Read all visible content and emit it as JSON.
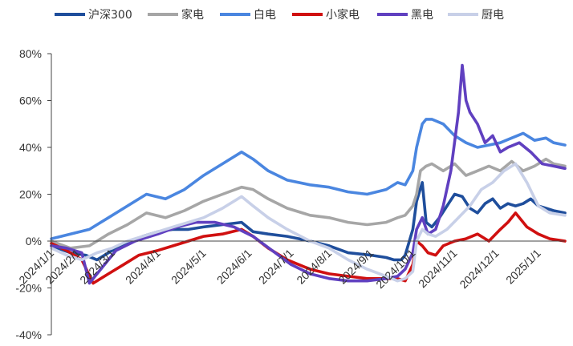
{
  "chart_data": {
    "type": "line",
    "title": "",
    "xlabel": "",
    "ylabel": "",
    "ylim": [
      -40,
      80
    ],
    "yticks": [
      -40,
      -20,
      0,
      20,
      40,
      60,
      80
    ],
    "ytick_labels": [
      "-40%",
      "-20%",
      "0%",
      "20%",
      "40%",
      "60%",
      "80%"
    ],
    "x_tick_labels": [
      "2024/1/1",
      "2024/2/1",
      "2024/3/1",
      "2024/4/1",
      "2024/5/1",
      "2024/6/1",
      "2024/7/1",
      "2024/8/1",
      "2024/9/1",
      "2024/10/1",
      "2024/11/1",
      "2024/12/1",
      "2025/1/1"
    ],
    "x_tick_positions": [
      0.0,
      0.7,
      1.6,
      2.8,
      4.0,
      5.2,
      6.3,
      7.3,
      8.4,
      9.5,
      10.6,
      11.7,
      12.8
    ],
    "xlim": [
      0,
      13.5
    ],
    "legend_position": "top",
    "series": [
      {
        "name": "沪深300",
        "color": "#1f4e9c",
        "x": [
          0,
          0.5,
          0.9,
          1.2,
          1.6,
          2.0,
          2.4,
          2.8,
          3.2,
          3.6,
          4.0,
          4.5,
          5.0,
          5.3,
          5.7,
          6.2,
          6.8,
          7.3,
          7.8,
          8.4,
          8.8,
          9.0,
          9.2,
          9.3,
          9.5,
          9.6,
          9.75,
          9.85,
          10.0,
          10.2,
          10.4,
          10.6,
          10.8,
          11.0,
          11.2,
          11.4,
          11.6,
          11.8,
          12.0,
          12.2,
          12.4,
          12.6,
          12.8,
          13.0,
          13.2,
          13.5
        ],
        "values": [
          -2,
          -5,
          -6,
          -8,
          -4,
          -1,
          2,
          4,
          5,
          5,
          6,
          7,
          8,
          4,
          3,
          2,
          0,
          -2,
          -5,
          -6,
          -7,
          -8,
          -8,
          -6,
          5,
          17,
          25,
          8,
          6,
          10,
          15,
          20,
          19,
          14,
          12,
          16,
          18,
          14,
          16,
          15,
          16,
          18,
          15,
          14,
          13,
          12
        ]
      },
      {
        "name": "家电",
        "color": "#a6a6a6",
        "x": [
          0,
          0.5,
          1.0,
          1.5,
          2.0,
          2.5,
          3.0,
          3.5,
          4.0,
          4.5,
          5.0,
          5.3,
          5.7,
          6.2,
          6.8,
          7.3,
          7.8,
          8.3,
          8.8,
          9.1,
          9.3,
          9.5,
          9.6,
          9.7,
          9.85,
          10.0,
          10.3,
          10.6,
          10.9,
          11.2,
          11.5,
          11.8,
          12.1,
          12.4,
          12.7,
          13.0,
          13.2,
          13.5
        ],
        "values": [
          0,
          -3,
          -2,
          3,
          7,
          12,
          10,
          13,
          17,
          20,
          23,
          22,
          18,
          14,
          11,
          10,
          8,
          7,
          8,
          10,
          11,
          15,
          20,
          30,
          32,
          33,
          30,
          33,
          28,
          30,
          32,
          30,
          34,
          30,
          32,
          35,
          33,
          32
        ]
      },
      {
        "name": "白电",
        "color": "#4a86e0",
        "x": [
          0,
          0.5,
          1.0,
          1.5,
          2.0,
          2.5,
          3.0,
          3.5,
          4.0,
          4.5,
          5.0,
          5.3,
          5.7,
          6.2,
          6.8,
          7.3,
          7.8,
          8.3,
          8.8,
          9.1,
          9.3,
          9.5,
          9.6,
          9.75,
          9.85,
          10.0,
          10.3,
          10.6,
          10.9,
          11.2,
          11.5,
          11.8,
          12.1,
          12.4,
          12.7,
          13.0,
          13.2,
          13.5
        ],
        "values": [
          1,
          3,
          5,
          10,
          15,
          20,
          18,
          22,
          28,
          33,
          38,
          35,
          30,
          26,
          24,
          23,
          21,
          20,
          22,
          25,
          24,
          30,
          40,
          50,
          52,
          52,
          50,
          45,
          42,
          40,
          41,
          42,
          44,
          46,
          43,
          44,
          42,
          41
        ]
      },
      {
        "name": "小家电",
        "color": "#d01010",
        "x": [
          0,
          0.4,
          0.8,
          1.1,
          1.5,
          1.9,
          2.3,
          2.8,
          3.2,
          3.6,
          4.0,
          4.5,
          5.0,
          5.3,
          5.7,
          6.2,
          6.8,
          7.3,
          7.8,
          8.3,
          8.8,
          9.1,
          9.3,
          9.5,
          9.6,
          9.75,
          9.9,
          10.1,
          10.3,
          10.6,
          10.9,
          11.2,
          11.5,
          11.8,
          12.0,
          12.2,
          12.5,
          12.8,
          13.1,
          13.5
        ],
        "values": [
          -1,
          -4,
          -8,
          -18,
          -14,
          -10,
          -6,
          -4,
          -2,
          0,
          2,
          3,
          5,
          2,
          -3,
          -8,
          -12,
          -14,
          -15,
          -16,
          -16,
          -16,
          -17,
          -10,
          0,
          -2,
          -5,
          -6,
          -2,
          0,
          1,
          3,
          0,
          5,
          8,
          12,
          6,
          3,
          1,
          0
        ]
      },
      {
        "name": "黑电",
        "color": "#6040c0",
        "x": [
          0,
          0.4,
          0.8,
          1.0,
          1.3,
          1.7,
          2.2,
          2.8,
          3.3,
          3.8,
          4.3,
          4.8,
          5.3,
          5.8,
          6.3,
          6.8,
          7.3,
          7.8,
          8.3,
          8.8,
          9.1,
          9.3,
          9.5,
          9.6,
          9.75,
          9.9,
          10.1,
          10.3,
          10.5,
          10.7,
          10.8,
          10.9,
          11.0,
          11.2,
          11.4,
          11.6,
          11.8,
          12.0,
          12.3,
          12.6,
          12.9,
          13.2,
          13.5
        ],
        "values": [
          -2,
          -3,
          -5,
          -18,
          -12,
          -4,
          0,
          3,
          6,
          8,
          8,
          6,
          2,
          -4,
          -10,
          -14,
          -16,
          -17,
          -17,
          -16,
          -15,
          -12,
          -5,
          5,
          10,
          3,
          5,
          15,
          30,
          55,
          75,
          60,
          55,
          50,
          42,
          45,
          38,
          40,
          42,
          38,
          33,
          32,
          31
        ]
      },
      {
        "name": "厨电",
        "color": "#c8d0e8",
        "x": [
          0,
          0.4,
          0.8,
          1.2,
          1.6,
          2.0,
          2.4,
          2.8,
          3.2,
          3.6,
          4.0,
          4.5,
          5.0,
          5.3,
          5.7,
          6.2,
          6.8,
          7.3,
          7.8,
          8.3,
          8.8,
          9.1,
          9.3,
          9.5,
          9.6,
          9.75,
          9.9,
          10.1,
          10.4,
          10.7,
          11.0,
          11.3,
          11.6,
          11.9,
          12.2,
          12.5,
          12.8,
          13.1,
          13.5
        ],
        "values": [
          -3,
          -6,
          -8,
          -5,
          -3,
          0,
          2,
          4,
          6,
          8,
          10,
          14,
          19,
          15,
          10,
          5,
          0,
          -3,
          -8,
          -12,
          -15,
          -17,
          -16,
          -13,
          0,
          5,
          3,
          2,
          5,
          10,
          15,
          22,
          25,
          30,
          33,
          25,
          15,
          12,
          11
        ]
      }
    ]
  }
}
